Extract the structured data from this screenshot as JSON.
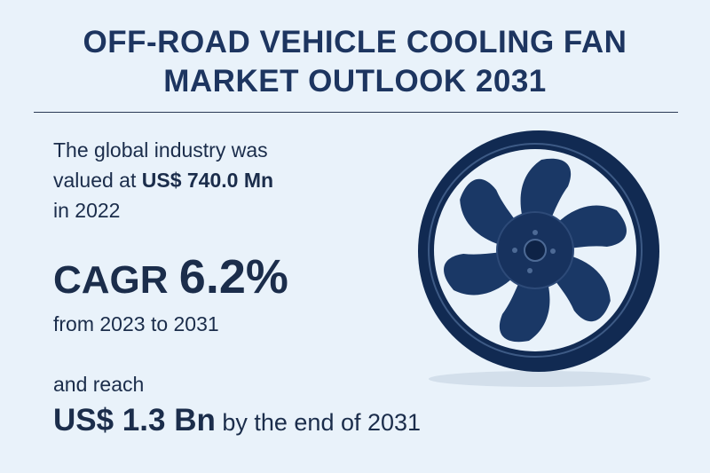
{
  "title": {
    "line1": "OFF-ROAD VEHICLE COOLING FAN",
    "line2": "MARKET OUTLOOK 2031"
  },
  "valuation": {
    "line1": "The global industry was",
    "prefix": "valued at ",
    "value": "US$ 740.0 Mn",
    "line3": "in 2022"
  },
  "cagr": {
    "label": "CAGR",
    "value": "6.2%",
    "period": "from 2023 to 2031"
  },
  "forecast": {
    "intro": "and reach",
    "value": "US$ 1.3 Bn",
    "suffix": " by the end of 2031"
  },
  "colors": {
    "background": "#e9f2fa",
    "text": "#1b2d4b",
    "fan": "#17325e"
  },
  "illustration": {
    "icon": "cooling-fan-icon"
  }
}
